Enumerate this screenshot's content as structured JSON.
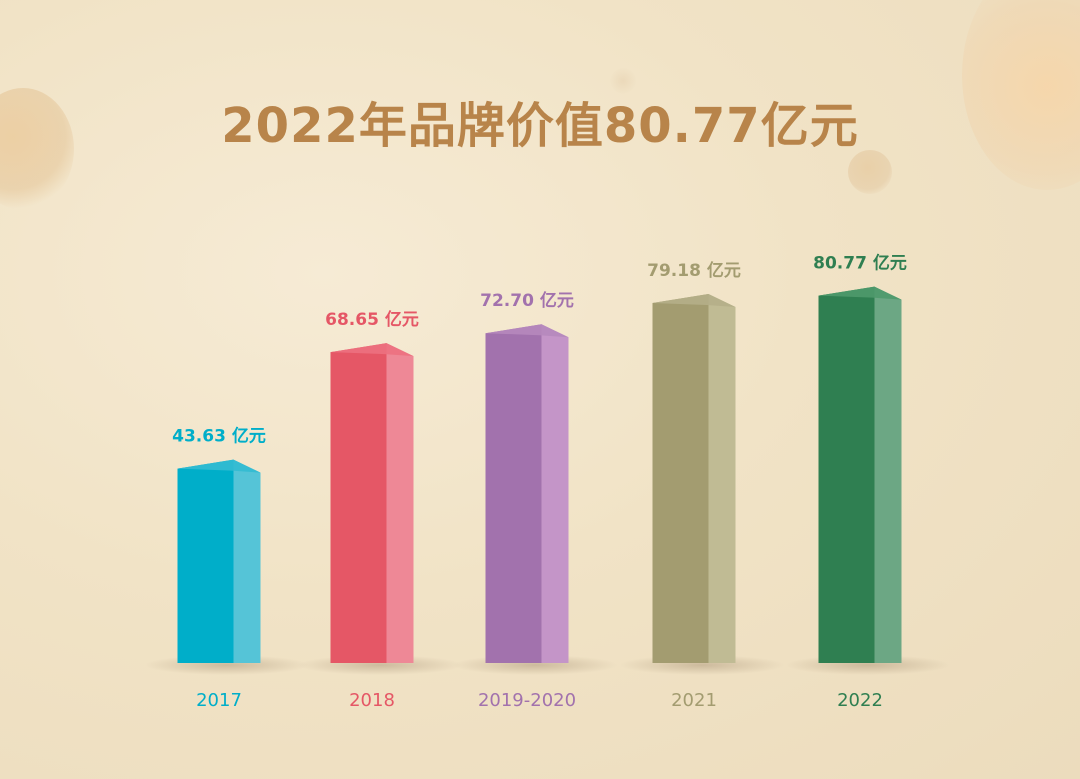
{
  "title": "2022年品牌价值80.77亿元",
  "chart_data": {
    "type": "bar",
    "title": "2022年品牌价值80.77亿元",
    "categories": [
      "2017",
      "2018",
      "2019-2020",
      "2021",
      "2022"
    ],
    "values": [
      43.63,
      68.65,
      72.7,
      79.18,
      80.77
    ],
    "value_labels": [
      "43.63 亿元",
      "68.65 亿元",
      "72.70 亿元",
      "79.18 亿元",
      "80.77 亿元"
    ],
    "unit": "亿元",
    "colors": [
      "#00aec9",
      "#e55766",
      "#a272ad",
      "#a39c70",
      "#2f7f51"
    ],
    "side_colors": [
      "#55c4d7",
      "#ee8896",
      "#c495c8",
      "#c0bb94",
      "#6ca784"
    ],
    "top_colors": [
      "#33bbd2",
      "#ec7180",
      "#b688bd",
      "#b5af88",
      "#4f9a6c"
    ],
    "grid": false,
    "legend": "none",
    "ylim": [
      0,
      90
    ]
  }
}
